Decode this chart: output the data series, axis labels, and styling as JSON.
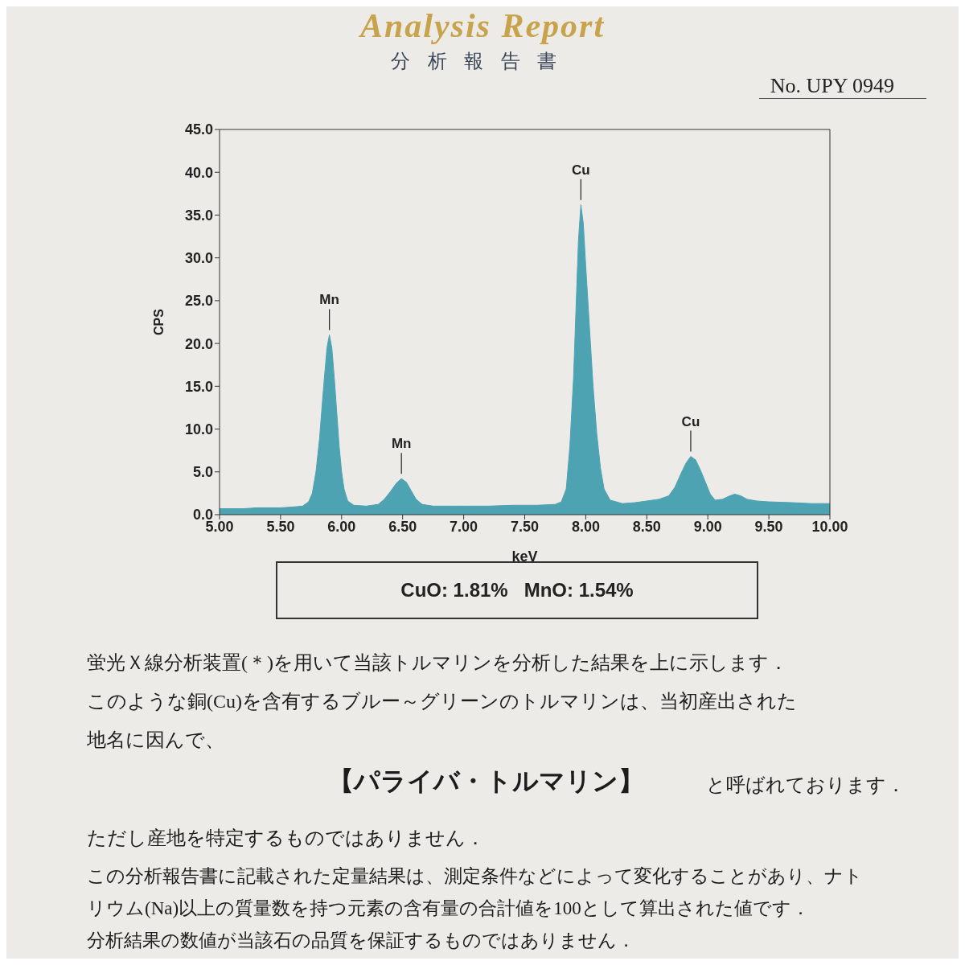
{
  "chart_data": {
    "type": "area",
    "title": "Analysis Report",
    "subtitle": "分析報告書",
    "xlabel": "keV",
    "ylabel": "CPS",
    "color": "#4ea3b3",
    "x": [
      5.0,
      5.1,
      5.2,
      5.3,
      5.4,
      5.5,
      5.6,
      5.68,
      5.73,
      5.76,
      5.79,
      5.82,
      5.85,
      5.88,
      5.9,
      5.92,
      5.94,
      5.96,
      5.98,
      6.0,
      6.02,
      6.05,
      6.1,
      6.2,
      6.3,
      6.35,
      6.4,
      6.45,
      6.49,
      6.53,
      6.57,
      6.61,
      6.66,
      6.75,
      6.9,
      7.0,
      7.2,
      7.4,
      7.6,
      7.75,
      7.8,
      7.84,
      7.87,
      7.9,
      7.92,
      7.94,
      7.96,
      7.98,
      8.0,
      8.03,
      8.06,
      8.09,
      8.12,
      8.15,
      8.2,
      8.3,
      8.4,
      8.5,
      8.6,
      8.68,
      8.73,
      8.78,
      8.82,
      8.86,
      8.9,
      8.94,
      8.98,
      9.02,
      9.06,
      9.12,
      9.18,
      9.22,
      9.27,
      9.32,
      9.4,
      9.5,
      9.7,
      9.85,
      10.0
    ],
    "values": [
      0.7,
      0.7,
      0.7,
      0.8,
      0.8,
      0.8,
      0.9,
      1.0,
      1.5,
      2.5,
      5.0,
      9.0,
      14.5,
      19.5,
      21.0,
      19.5,
      16.0,
      12.0,
      8.0,
      5.0,
      3.0,
      1.6,
      1.1,
      1.0,
      1.2,
      1.8,
      2.7,
      3.7,
      4.2,
      3.8,
      2.8,
      1.8,
      1.2,
      1.0,
      1.0,
      1.0,
      1.0,
      1.1,
      1.1,
      1.2,
      1.5,
      3.0,
      8.0,
      16.0,
      24.0,
      32.0,
      36.2,
      34.0,
      29.0,
      22.0,
      15.0,
      9.5,
      5.5,
      3.0,
      1.7,
      1.3,
      1.4,
      1.6,
      1.8,
      2.2,
      3.2,
      4.8,
      6.0,
      6.8,
      6.4,
      5.2,
      3.8,
      2.4,
      1.7,
      1.8,
      2.2,
      2.4,
      2.2,
      1.8,
      1.6,
      1.5,
      1.4,
      1.3,
      1.3
    ],
    "xlim": [
      5,
      10
    ],
    "xticks": [
      {
        "value": 5,
        "label": "5.00"
      },
      {
        "value": 5.5,
        "label": "5.50"
      },
      {
        "value": 6,
        "label": "6.00"
      },
      {
        "value": 6.5,
        "label": "6.50"
      },
      {
        "value": 7,
        "label": "7.00"
      },
      {
        "value": 7.5,
        "label": "7.50"
      },
      {
        "value": 8,
        "label": "8.00"
      },
      {
        "value": 8.5,
        "label": "8.50"
      },
      {
        "value": 9,
        "label": "9.00"
      },
      {
        "value": 9.5,
        "label": "9.50"
      },
      {
        "value": 10,
        "label": "10.00"
      }
    ],
    "ylim": [
      0,
      45
    ],
    "yticks": [
      {
        "value": 0,
        "label": "0.0"
      },
      {
        "value": 5,
        "label": "5.0"
      },
      {
        "value": 10,
        "label": "10.0"
      },
      {
        "value": 15,
        "label": "15.0"
      },
      {
        "value": 20,
        "label": "20.0"
      },
      {
        "value": 25,
        "label": "25.0"
      },
      {
        "value": 30,
        "label": "30.0"
      },
      {
        "value": 35,
        "label": "35.0"
      },
      {
        "value": 40,
        "label": "40.0"
      },
      {
        "value": 45,
        "label": "45.0"
      }
    ],
    "annotations": [
      {
        "text": "Mn",
        "x": 5.9,
        "y": 21.0
      },
      {
        "text": "Mn",
        "x": 6.49,
        "y": 4.2
      },
      {
        "text": "Cu",
        "x": 7.96,
        "y": 36.2
      },
      {
        "text": "Cu",
        "x": 8.86,
        "y": 6.8
      },
      "No. UPY 0949",
      "CuO: 1.81%   MnO: 1.54%",
      "蛍光Ｘ線分析装置(＊)を用いて当該トルマリンを分析した結果を上に示します．",
      "このような銅(Cu)を含有するブルー～グリーンのトルマリンは、当初産出された",
      "地名に因んで、",
      "【パライバ・トルマリン】",
      "と呼ばれております．",
      "ただし産地を特定するものではありません．",
      "この分析報告書に記載された定量結果は、測定条件などによって変化することがあり、ナト",
      "リウム(Na)以上の質量数を持つ元素の含有量の合計値を100として算出された値です．",
      "分析結果の数値が当該石の品質を保証するものではありません．"
    ]
  }
}
